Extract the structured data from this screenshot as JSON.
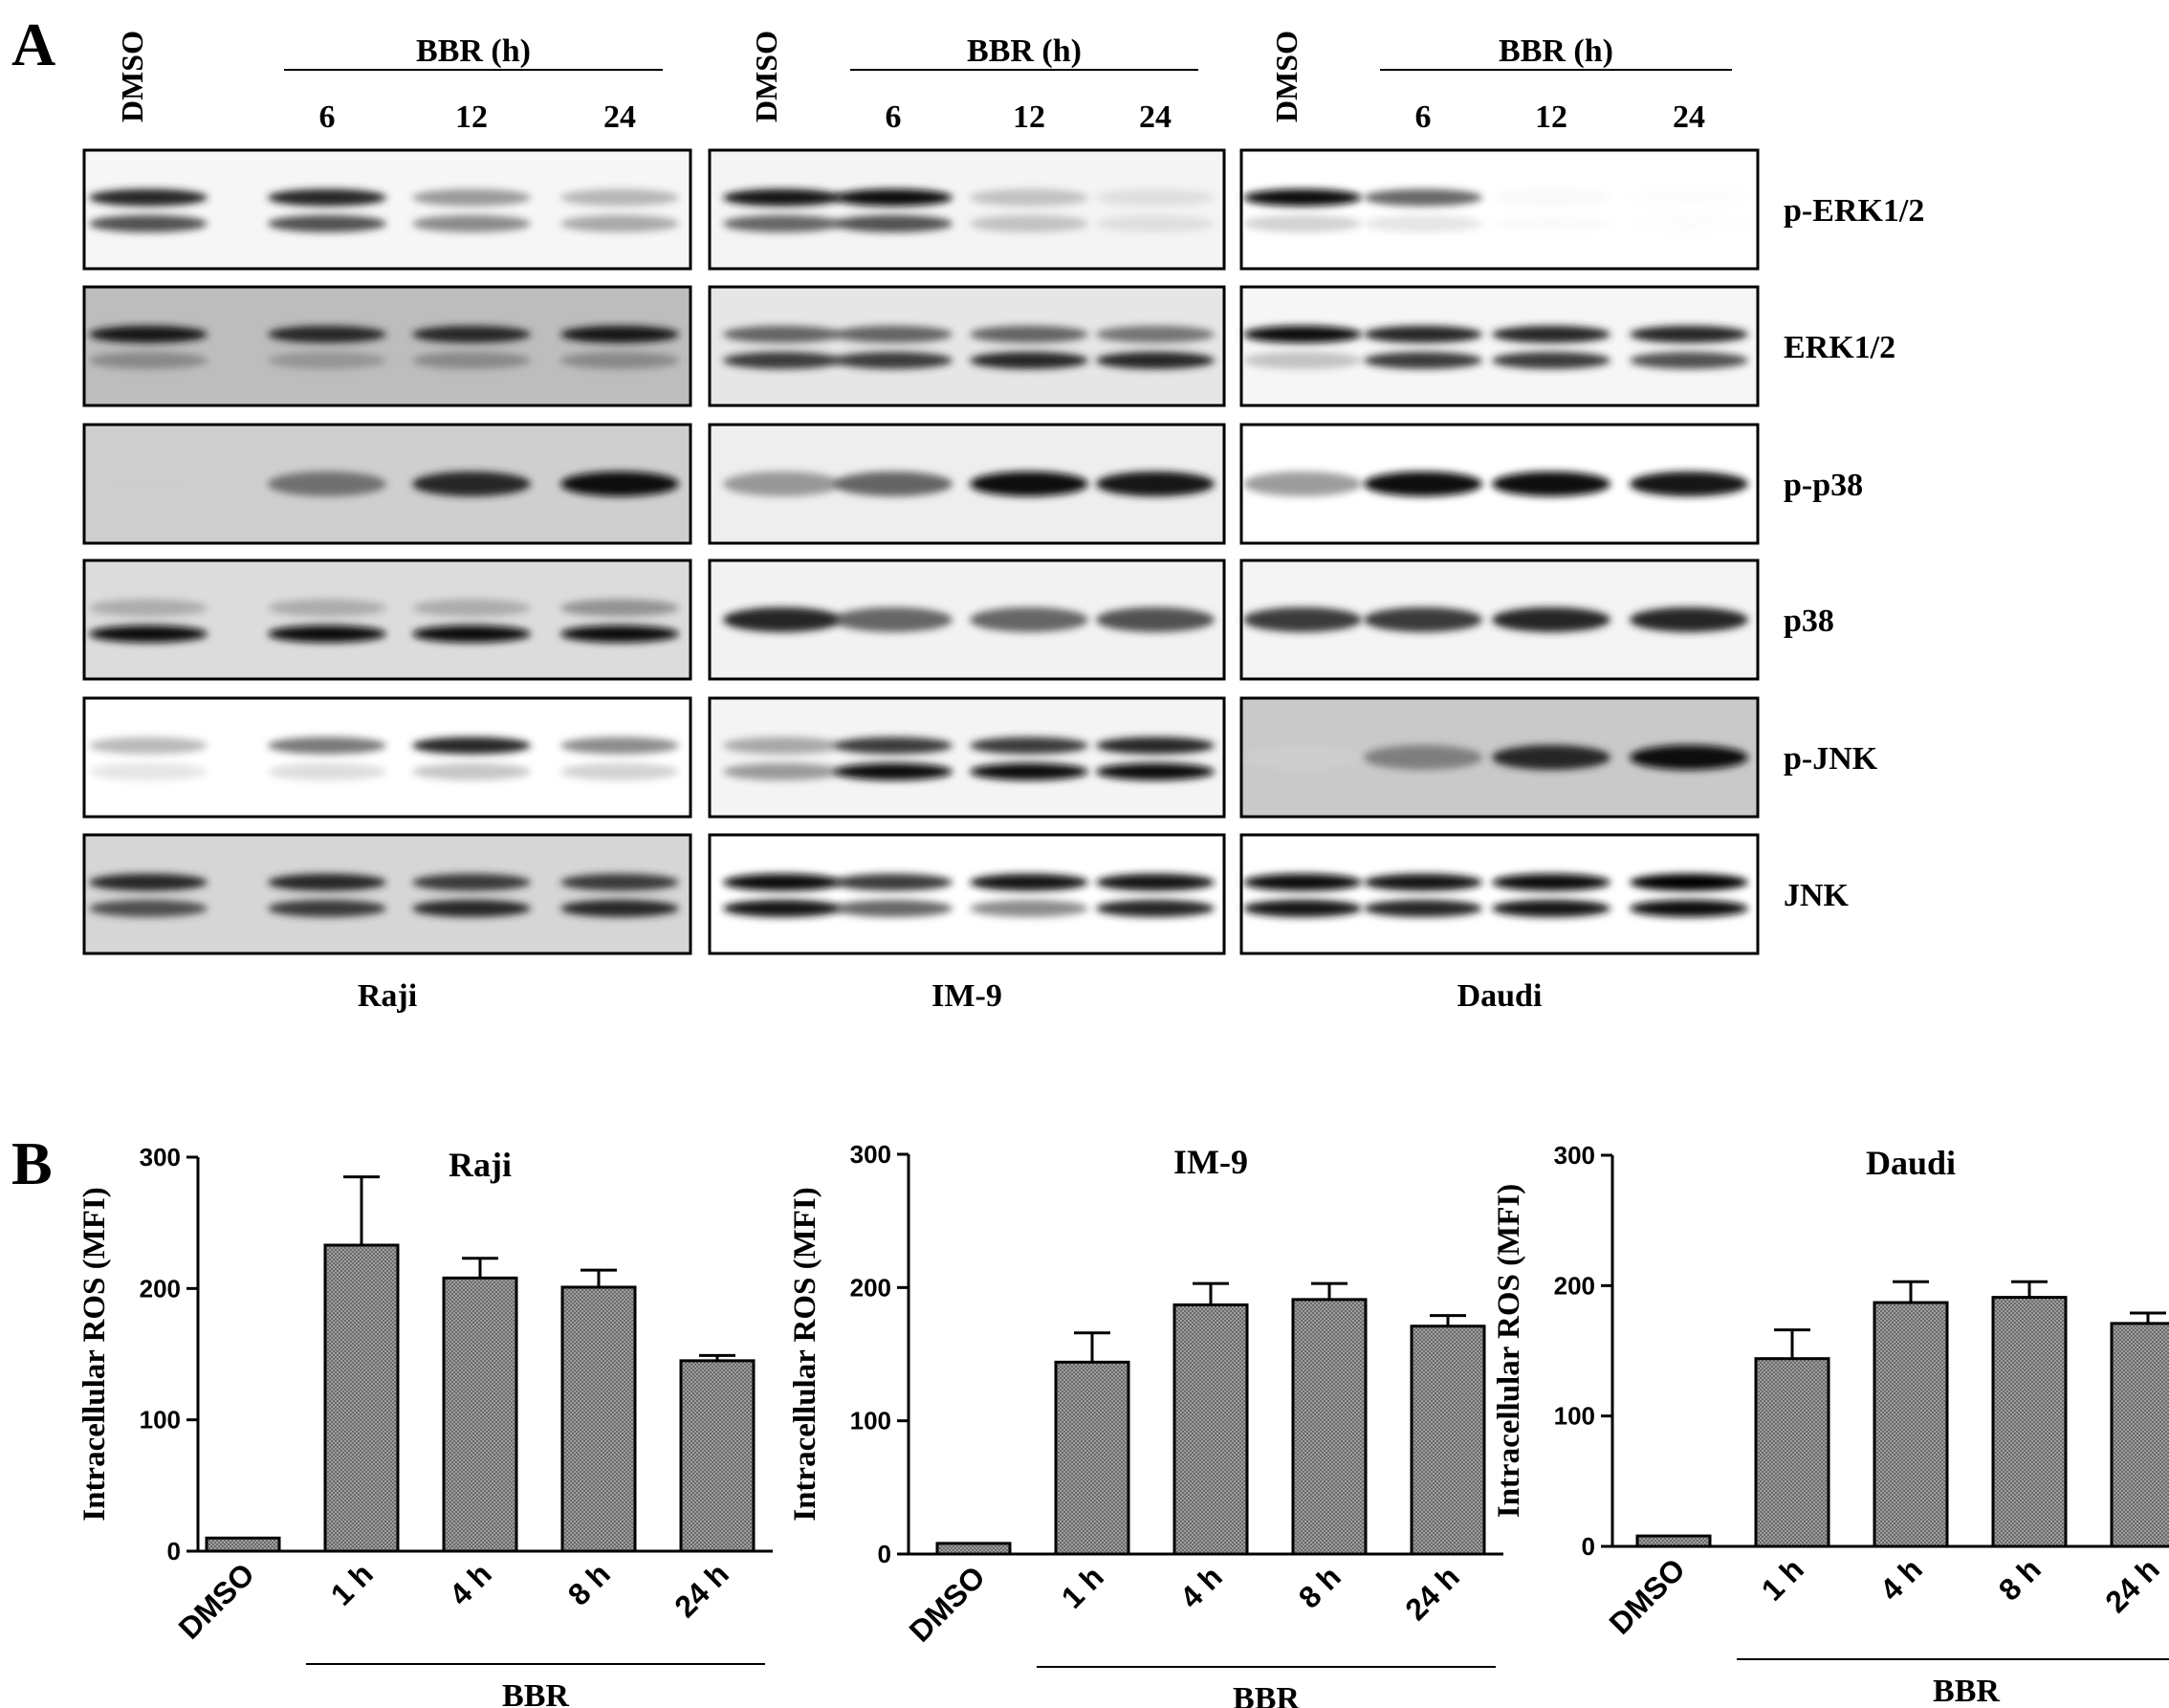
{
  "figure": {
    "panel_a_letter": "A",
    "panel_b_letter": "B",
    "lane_labels": [
      "DMSO",
      "6",
      "12",
      "24"
    ],
    "treatment_label": "BBR (h)",
    "cell_lines": [
      "Raji",
      "IM-9",
      "Daudi"
    ],
    "proteins": [
      "p-ERK1/2",
      "ERK1/2",
      "p-p38",
      "p38",
      "p-JNK",
      "JNK"
    ]
  },
  "bands": {
    "comment_free": true,
    "Raji": [
      {
        "rows": [
          [
            0.85,
            0.85,
            0.55,
            0.45
          ],
          [
            0.75,
            0.75,
            0.6,
            0.5
          ]
        ],
        "bg": "#f6f6f6"
      },
      {
        "rows": [
          [
            0.9,
            0.85,
            0.85,
            0.9
          ],
          [
            0.55,
            0.5,
            0.55,
            0.55
          ]
        ],
        "bg": "#bdbdbd"
      },
      {
        "rows": [
          [
            0.2,
            0.65,
            0.85,
            0.95
          ]
        ],
        "bg": "#cfcfcf"
      },
      {
        "rows": [
          [
            0.45,
            0.45,
            0.45,
            0.55
          ],
          [
            0.95,
            0.95,
            0.95,
            0.95
          ]
        ],
        "bg": "#dcdcdc"
      },
      {
        "rows": [
          [
            0.45,
            0.65,
            0.85,
            0.6
          ],
          [
            0.25,
            0.3,
            0.4,
            0.35
          ]
        ],
        "bg": "#ffffff"
      },
      {
        "rows": [
          [
            0.85,
            0.85,
            0.8,
            0.8
          ],
          [
            0.75,
            0.8,
            0.85,
            0.85
          ]
        ],
        "bg": "#d6d6d6"
      }
    ],
    "IM-9": [
      {
        "rows": [
          [
            0.9,
            0.95,
            0.4,
            0.25
          ],
          [
            0.7,
            0.75,
            0.4,
            0.25
          ]
        ],
        "bg": "#f4f4f4"
      },
      {
        "rows": [
          [
            0.7,
            0.7,
            0.7,
            0.65
          ],
          [
            0.8,
            0.8,
            0.85,
            0.85
          ]
        ],
        "bg": "#e6e6e6"
      },
      {
        "rows": [
          [
            0.55,
            0.7,
            0.95,
            0.9
          ]
        ],
        "bg": "#eeeeee"
      },
      {
        "rows": [
          [
            0.85,
            0.7,
            0.7,
            0.75
          ]
        ],
        "bg": "#f2f2f2"
      },
      {
        "rows": [
          [
            0.5,
            0.8,
            0.8,
            0.85
          ],
          [
            0.55,
            0.95,
            0.95,
            0.95
          ]
        ],
        "bg": "#f4f4f4"
      },
      {
        "rows": [
          [
            0.95,
            0.8,
            0.9,
            0.9
          ],
          [
            0.9,
            0.7,
            0.6,
            0.85
          ]
        ],
        "bg": "#ffffff"
      }
    ],
    "Daudi": [
      {
        "rows": [
          [
            0.95,
            0.7,
            0.1,
            0.05
          ],
          [
            0.35,
            0.25,
            0.08,
            0.05
          ]
        ],
        "bg": "#ffffff"
      },
      {
        "rows": [
          [
            0.95,
            0.85,
            0.85,
            0.85
          ],
          [
            0.4,
            0.8,
            0.8,
            0.75
          ]
        ],
        "bg": "#f6f6f6"
      },
      {
        "rows": [
          [
            0.55,
            0.95,
            0.95,
            0.9
          ]
        ],
        "bg": "#ffffff"
      },
      {
        "rows": [
          [
            0.8,
            0.8,
            0.85,
            0.85
          ]
        ],
        "bg": "#f4f4f4"
      },
      {
        "rows": [
          [
            0.15,
            0.6,
            0.85,
            0.95
          ]
        ],
        "bg": "#c9c9c9"
      },
      {
        "rows": [
          [
            0.95,
            0.9,
            0.95,
            0.98
          ],
          [
            0.9,
            0.85,
            0.9,
            0.95
          ]
        ],
        "bg": "#ffffff"
      }
    ]
  },
  "chart_data": [
    {
      "type": "bar",
      "title": "Raji",
      "ylabel": "Intracellular ROS (MFI)",
      "xlabel": "BBR",
      "categories": [
        "DMSO",
        "1 h",
        "4 h",
        "8 h",
        "24 h"
      ],
      "values": [
        10,
        233,
        208,
        201,
        145
      ],
      "errors": [
        0,
        52,
        15,
        13,
        4
      ],
      "ylim": [
        0,
        300
      ],
      "yticks": [
        "0",
        "100",
        "200",
        "300"
      ]
    },
    {
      "type": "bar",
      "title": "IM-9",
      "ylabel": "Intracellular ROS (MFI)",
      "xlabel": "BBR",
      "categories": [
        "DMSO",
        "1 h",
        "4 h",
        "8 h",
        "24 h"
      ],
      "values": [
        8,
        144,
        187,
        191,
        171
      ],
      "errors": [
        0,
        22,
        16,
        12,
        8
      ],
      "ylim": [
        0,
        300
      ],
      "yticks": [
        "0",
        "100",
        "200",
        "300"
      ]
    },
    {
      "type": "bar",
      "title": "Daudi",
      "ylabel": "Intracellular ROS (MFI)",
      "xlabel": "BBR",
      "categories": [
        "DMSO",
        "1 h",
        "4 h",
        "8 h",
        "24 h"
      ],
      "values": [
        8,
        144,
        187,
        191,
        171
      ],
      "errors": [
        0,
        22,
        16,
        12,
        8
      ],
      "ylim": [
        0,
        300
      ],
      "yticks": [
        "0",
        "100",
        "200",
        "300"
      ]
    }
  ]
}
